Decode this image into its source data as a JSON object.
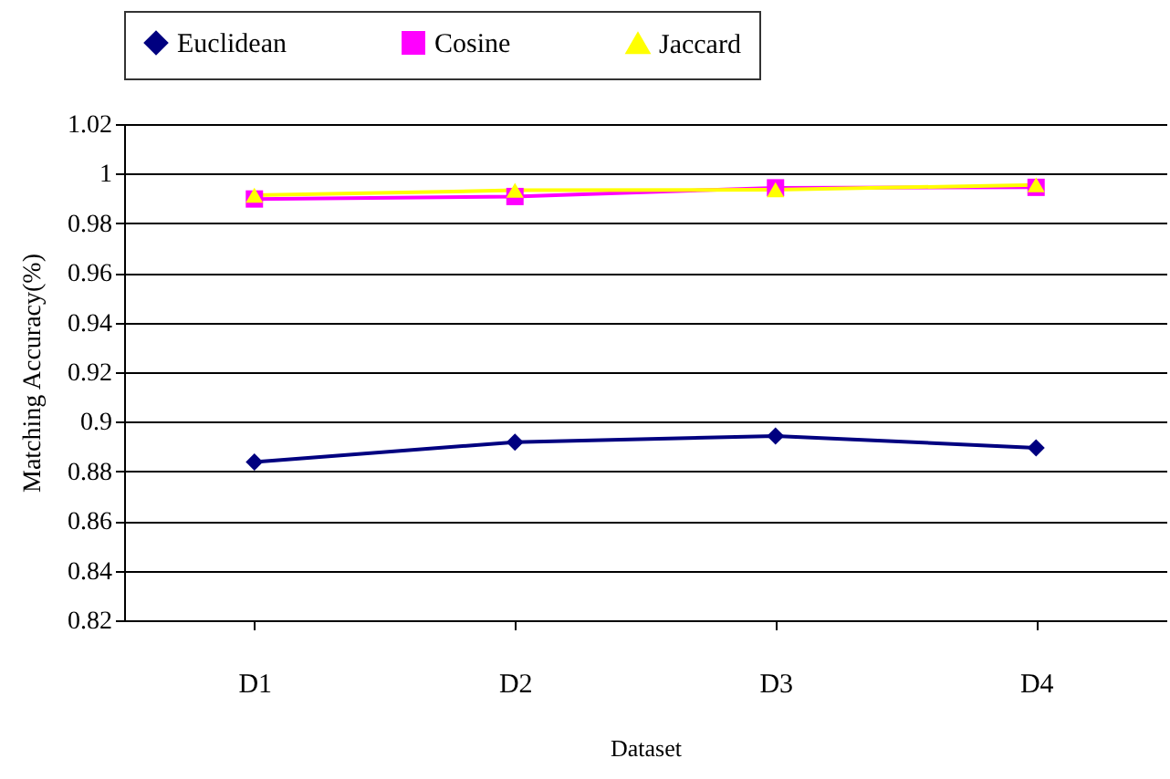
{
  "chart_data": {
    "type": "line",
    "xlabel": "Dataset",
    "ylabel": "Matching Accuracy(%)",
    "categories": [
      "D1",
      "D2",
      "D3",
      "D4"
    ],
    "series": [
      {
        "name": "Euclidean",
        "color": "#000080",
        "marker": "diamond",
        "values": [
          0.8838,
          0.8918,
          0.8943,
          0.8895
        ]
      },
      {
        "name": "Cosine",
        "color": "#ff00ff",
        "marker": "square",
        "values": [
          0.9898,
          0.9908,
          0.9943,
          0.9945
        ]
      },
      {
        "name": "Jaccard",
        "color": "#ffff00",
        "marker": "triangle",
        "values": [
          0.9913,
          0.9933,
          0.9935,
          0.9955
        ]
      }
    ],
    "ylim": [
      0.82,
      1.02
    ],
    "yticks": [
      0.82,
      0.84,
      0.86,
      0.88,
      0.9,
      0.92,
      0.94,
      0.96,
      0.98,
      1,
      1.02
    ],
    "grid": "y",
    "legend": "top"
  }
}
